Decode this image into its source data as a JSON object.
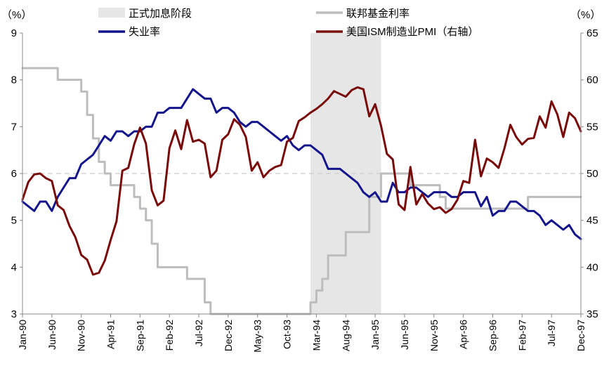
{
  "chart_data": {
    "type": "line",
    "left_axis": {
      "unit_label": "（%）",
      "min": 3,
      "max": 9,
      "ticks": [
        3,
        4,
        5,
        6,
        7,
        8,
        9
      ]
    },
    "right_axis": {
      "unit_label": "（%）",
      "min": 35,
      "max": 65,
      "ticks": [
        35,
        40,
        45,
        50,
        55,
        60,
        65
      ]
    },
    "x_tick_labels": [
      "Jan-90",
      "Jun-90",
      "Nov-90",
      "Apr-91",
      "Sep-91",
      "Feb-92",
      "Jul-92",
      "Dec-92",
      "May-93",
      "Oct-93",
      "Mar-94",
      "Aug-94",
      "Jan-95",
      "Jun-95",
      "Nov-95",
      "Apr-96",
      "Sep-96",
      "Feb-97",
      "Jul-97",
      "Dec-97"
    ],
    "x_range": [
      "1990-01",
      "1997-12"
    ],
    "reference_line": {
      "axis": "right",
      "value": 50,
      "style": "dashed"
    },
    "shaded_period": {
      "name": "正式加息阶段",
      "start": "1994-02",
      "end": "1995-02",
      "color": "#e6e6e6"
    },
    "colors": {
      "fed_funds": "#bdbdbd",
      "unemployment": "#14148c",
      "pmi": "#7a0a0a",
      "shade": "#e6e6e6",
      "ref_line": "#cccccc"
    },
    "legend": {
      "placement": "top"
    },
    "series": [
      {
        "name": "失业率",
        "axis": "left",
        "color": "#14148c",
        "start": "1990-01",
        "values": [
          5.4,
          5.3,
          5.2,
          5.4,
          5.4,
          5.2,
          5.5,
          5.7,
          5.9,
          5.9,
          6.2,
          6.3,
          6.4,
          6.6,
          6.8,
          6.7,
          6.9,
          6.9,
          6.8,
          6.9,
          6.9,
          7.0,
          7.0,
          7.3,
          7.3,
          7.4,
          7.4,
          7.4,
          7.6,
          7.8,
          7.7,
          7.6,
          7.6,
          7.3,
          7.4,
          7.4,
          7.3,
          7.1,
          7.0,
          7.1,
          7.1,
          7.0,
          6.9,
          6.8,
          6.7,
          6.8,
          6.6,
          6.5,
          6.6,
          6.6,
          6.5,
          6.4,
          6.1,
          6.1,
          6.1,
          6.0,
          5.9,
          5.8,
          5.6,
          5.5,
          5.6,
          5.4,
          5.4,
          5.8,
          5.6,
          5.6,
          5.7,
          5.7,
          5.6,
          5.5,
          5.6,
          5.6,
          5.6,
          5.5,
          5.5,
          5.6,
          5.6,
          5.6,
          5.3,
          5.5,
          5.1,
          5.2,
          5.2,
          5.4,
          5.4,
          5.3,
          5.2,
          5.2,
          5.1,
          4.9,
          5.0,
          4.9,
          4.8,
          4.9,
          4.7,
          4.6
        ]
      },
      {
        "name": "美国ISM制造业PMI（右轴）",
        "axis": "right",
        "color": "#7a0a0a",
        "start": "1990-01",
        "values": [
          47.2,
          49.1,
          49.9,
          50.0,
          49.5,
          49.2,
          46.6,
          46.1,
          44.4,
          43.2,
          41.3,
          40.8,
          39.2,
          39.4,
          40.7,
          42.9,
          44.9,
          50.3,
          50.6,
          53.1,
          54.9,
          53.2,
          48.2,
          46.6,
          47.1,
          52.7,
          54.6,
          52.6,
          55.7,
          53.4,
          53.6,
          53.2,
          49.6,
          50.3,
          53.6,
          54.2,
          55.8,
          55.2,
          53.9,
          50.3,
          51.2,
          49.6,
          50.3,
          50.7,
          50.9,
          53.4,
          53.8,
          55.6,
          56.0,
          56.5,
          56.9,
          57.4,
          58.0,
          58.8,
          58.5,
          58.2,
          58.9,
          59.2,
          59.0,
          56.1,
          57.4,
          55.1,
          52.1,
          51.5,
          46.7,
          46.1,
          50.7,
          46.7,
          47.8,
          46.8,
          46.2,
          46.4,
          45.8,
          46.2,
          47.2,
          49.2,
          49.0,
          53.6,
          49.7,
          51.6,
          51.2,
          50.6,
          52.7,
          55.2,
          53.9,
          53.1,
          53.7,
          53.8,
          56.1,
          54.9,
          57.7,
          56.3,
          53.9,
          56.5,
          55.9,
          54.5
        ]
      },
      {
        "name": "联邦基金利率",
        "axis": "left",
        "color": "#bdbdbd",
        "style": "step",
        "start": "1990-01",
        "values": [
          8.25,
          8.25,
          8.25,
          8.25,
          8.25,
          8.25,
          8.0,
          8.0,
          8.0,
          8.0,
          7.75,
          7.25,
          6.75,
          6.25,
          6.0,
          5.75,
          5.75,
          5.75,
          5.75,
          5.5,
          5.25,
          5.0,
          4.5,
          4.0,
          4.0,
          4.0,
          4.0,
          4.0,
          3.75,
          3.75,
          3.75,
          3.25,
          3.0,
          3.0,
          3.0,
          3.0,
          3.0,
          3.0,
          3.0,
          3.0,
          3.0,
          3.0,
          3.0,
          3.0,
          3.0,
          3.0,
          3.0,
          3.0,
          3.0,
          3.25,
          3.5,
          3.75,
          4.25,
          4.25,
          4.25,
          4.75,
          4.75,
          4.75,
          4.75,
          5.5,
          5.5,
          6.0,
          6.0,
          6.0,
          6.0,
          6.0,
          5.75,
          5.75,
          5.75,
          5.75,
          5.75,
          5.5,
          5.25,
          5.25,
          5.25,
          5.25,
          5.25,
          5.25,
          5.25,
          5.25,
          5.25,
          5.25,
          5.25,
          5.25,
          5.25,
          5.25,
          5.5,
          5.5,
          5.5,
          5.5,
          5.5,
          5.5,
          5.5,
          5.5,
          5.5,
          5.5
        ]
      }
    ]
  }
}
